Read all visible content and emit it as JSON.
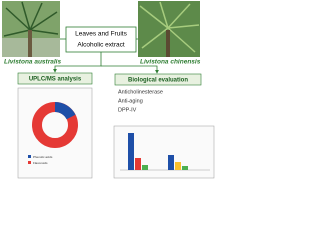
{
  "species": {
    "left": "Livistona australis",
    "right": "Livistona chinensis"
  },
  "extract": {
    "line1": "Leaves and Fruits",
    "line2": "Alcoholic extract"
  },
  "analysis": {
    "title": "UPLC/MS analysis",
    "legend": [
      "Phenolic acids",
      "Flavonoids"
    ]
  },
  "evaluation": {
    "title": "Biological evaluation",
    "items": [
      "Anticholinesterase",
      "Anti-aging",
      "DPP-IV"
    ]
  }
}
